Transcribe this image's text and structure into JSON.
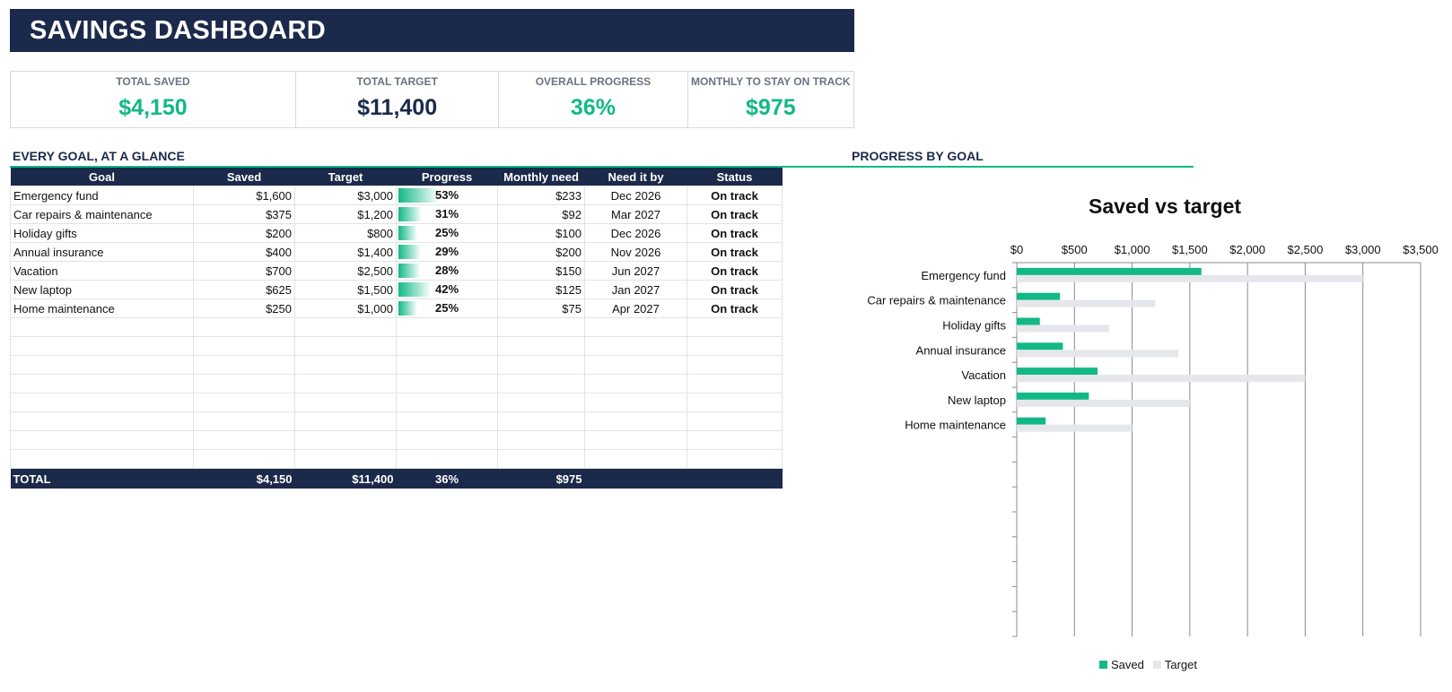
{
  "dashboard": {
    "title": "SAVINGS DASHBOARD"
  },
  "kpis": [
    {
      "label": "TOTAL SAVED",
      "value": "$4,150",
      "color": "#12b886"
    },
    {
      "label": "TOTAL TARGET",
      "value": "$11,400",
      "color": "#1b2a4a"
    },
    {
      "label": "OVERALL PROGRESS",
      "value": "36%",
      "color": "#12b886"
    },
    {
      "label": "MONTHLY TO STAY ON TRACK",
      "value": "$975",
      "color": "#12b886"
    }
  ],
  "sections": {
    "table_title": "EVERY GOAL, AT A GLANCE",
    "chart_title": "PROGRESS BY GOAL"
  },
  "table": {
    "headers": [
      "Goal",
      "Saved",
      "Target",
      "Progress",
      "Monthly need",
      "Need it by",
      "Status"
    ],
    "rows": [
      {
        "goal": "Emergency fund",
        "saved": "$1,600",
        "target": "$3,000",
        "progress": "53%",
        "progress_value": 0.53,
        "monthly": "$233",
        "need_by": "Dec 2026",
        "status": "On track"
      },
      {
        "goal": "Car repairs & maintenance",
        "saved": "$375",
        "target": "$1,200",
        "progress": "31%",
        "progress_value": 0.31,
        "monthly": "$92",
        "need_by": "Mar 2027",
        "status": "On track"
      },
      {
        "goal": "Holiday gifts",
        "saved": "$200",
        "target": "$800",
        "progress": "25%",
        "progress_value": 0.25,
        "monthly": "$100",
        "need_by": "Dec 2026",
        "status": "On track"
      },
      {
        "goal": "Annual insurance",
        "saved": "$400",
        "target": "$1,400",
        "progress": "29%",
        "progress_value": 0.29,
        "monthly": "$200",
        "need_by": "Nov 2026",
        "status": "On track"
      },
      {
        "goal": "Vacation",
        "saved": "$700",
        "target": "$2,500",
        "progress": "28%",
        "progress_value": 0.28,
        "monthly": "$150",
        "need_by": "Jun 2027",
        "status": "On track"
      },
      {
        "goal": "New laptop",
        "saved": "$625",
        "target": "$1,500",
        "progress": "42%",
        "progress_value": 0.42,
        "monthly": "$125",
        "need_by": "Jan 2027",
        "status": "On track"
      },
      {
        "goal": "Home maintenance",
        "saved": "$250",
        "target": "$1,000",
        "progress": "25%",
        "progress_value": 0.25,
        "monthly": "$75",
        "need_by": "Apr 2027",
        "status": "On track"
      }
    ],
    "empty_rows": 8,
    "total": {
      "label": "TOTAL",
      "saved": "$4,150",
      "target": "$11,400",
      "progress": "36%",
      "monthly": "$975"
    }
  },
  "chart_data": {
    "type": "bar",
    "orientation": "horizontal",
    "title": "Saved vs target",
    "categories": [
      "Emergency fund",
      "Car repairs & maintenance",
      "Holiday gifts",
      "Annual insurance",
      "Vacation",
      "New laptop",
      "Home maintenance"
    ],
    "series": [
      {
        "name": "Saved",
        "values": [
          1600,
          375,
          200,
          400,
          700,
          625,
          250
        ],
        "color": "#12b886"
      },
      {
        "name": "Target",
        "values": [
          3000,
          1200,
          800,
          1400,
          2500,
          1500,
          1000
        ],
        "color": "#e5e7eb"
      }
    ],
    "xlim": [
      0,
      3500
    ],
    "x_ticks": [
      "$0",
      "$500",
      "$1,000",
      "$1,500",
      "$2,000",
      "$2,500",
      "$3,000",
      "$3,500"
    ],
    "x_tick_values": [
      0,
      500,
      1000,
      1500,
      2000,
      2500,
      3000,
      3500
    ],
    "axis_position": "top",
    "category_slots": 15,
    "grid": true,
    "legend": "bottom"
  },
  "colors": {
    "navy": "#1b2a4a",
    "accent": "#12b886",
    "grid": "#8c8c8c"
  }
}
